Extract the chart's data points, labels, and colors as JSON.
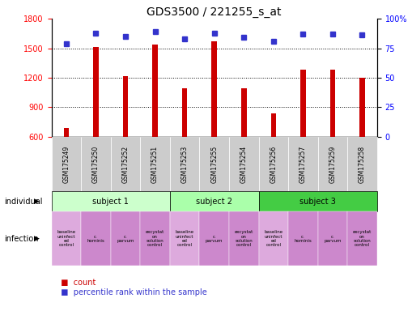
{
  "title": "GDS3500 / 221255_s_at",
  "samples": [
    "GSM175249",
    "GSM175250",
    "GSM175252",
    "GSM175251",
    "GSM175253",
    "GSM175255",
    "GSM175254",
    "GSM175256",
    "GSM175257",
    "GSM175259",
    "GSM175258"
  ],
  "counts": [
    690,
    1515,
    1220,
    1535,
    1090,
    1570,
    1090,
    840,
    1280,
    1280,
    1200
  ],
  "percentile_ranks": [
    79,
    88,
    85,
    89,
    83,
    88,
    84,
    81,
    87,
    87,
    86
  ],
  "ylim_left": [
    600,
    1800
  ],
  "ylim_right": [
    0,
    100
  ],
  "yticks_left": [
    600,
    900,
    1200,
    1500,
    1800
  ],
  "yticks_right": [
    0,
    25,
    50,
    75,
    100
  ],
  "bar_color": "#cc0000",
  "dot_color": "#3333cc",
  "bg_color": "#ffffff",
  "subjects": [
    {
      "label": "subject 1",
      "start": 0,
      "end": 4,
      "color": "#ccffcc"
    },
    {
      "label": "subject 2",
      "start": 4,
      "end": 7,
      "color": "#aaffaa"
    },
    {
      "label": "subject 3",
      "start": 7,
      "end": 11,
      "color": "#44cc44"
    }
  ],
  "infections": [
    {
      "label": "baseline\nuninfect\ned\ncontrol",
      "col": 0,
      "color": "#ddaadd"
    },
    {
      "label": "c.\nhominis",
      "col": 1,
      "color": "#cc88cc"
    },
    {
      "label": "c.\nparvum",
      "col": 2,
      "color": "#cc88cc"
    },
    {
      "label": "excystat\non\nsolution\ncontrol",
      "col": 3,
      "color": "#cc88cc"
    },
    {
      "label": "baseline\nuninfect\ned\ncontrol",
      "col": 4,
      "color": "#ddaadd"
    },
    {
      "label": "c.\nparvum",
      "col": 5,
      "color": "#cc88cc"
    },
    {
      "label": "excystat\non\nsolution\ncontrol",
      "col": 6,
      "color": "#cc88cc"
    },
    {
      "label": "baseline\nuninfect\ned\ncontrol",
      "col": 7,
      "color": "#ddaadd"
    },
    {
      "label": "c.\nhominis",
      "col": 8,
      "color": "#cc88cc"
    },
    {
      "label": "c.\nparvum",
      "col": 9,
      "color": "#cc88cc"
    },
    {
      "label": "excystat\non\nsolution\ncontrol",
      "col": 10,
      "color": "#cc88cc"
    }
  ],
  "sample_bg_color": "#cccccc",
  "label_fontsize": 7,
  "tick_fontsize": 7,
  "title_fontsize": 10,
  "bar_width": 0.18
}
